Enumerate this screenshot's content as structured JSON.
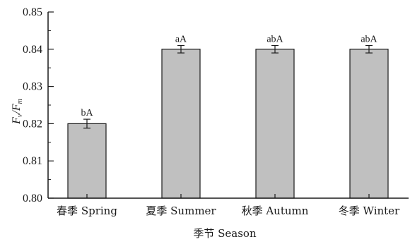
{
  "chart_data": {
    "type": "bar",
    "categories": [
      "春季 Spring",
      "夏季 Summer",
      "秋季 Autumn",
      "冬季 Winter"
    ],
    "values": [
      0.82,
      0.84,
      0.84,
      0.84
    ],
    "errors": [
      0.0012,
      0.001,
      0.001,
      0.001
    ],
    "data_labels": [
      "bA",
      "aA",
      "abA",
      "abA"
    ],
    "xlabel": "季节 Season",
    "ylabel": {
      "main": "F",
      "sub1": "v",
      "slash": "/",
      "main2": "F",
      "sub2": "m"
    },
    "ylim": [
      0.8,
      0.85
    ],
    "yticks": [
      "0.80",
      "0.81",
      "0.82",
      "0.83",
      "0.84",
      "0.85"
    ],
    "grid": false,
    "bar_color": "#c0c0c0",
    "edge_color": "#1a1a1a"
  }
}
